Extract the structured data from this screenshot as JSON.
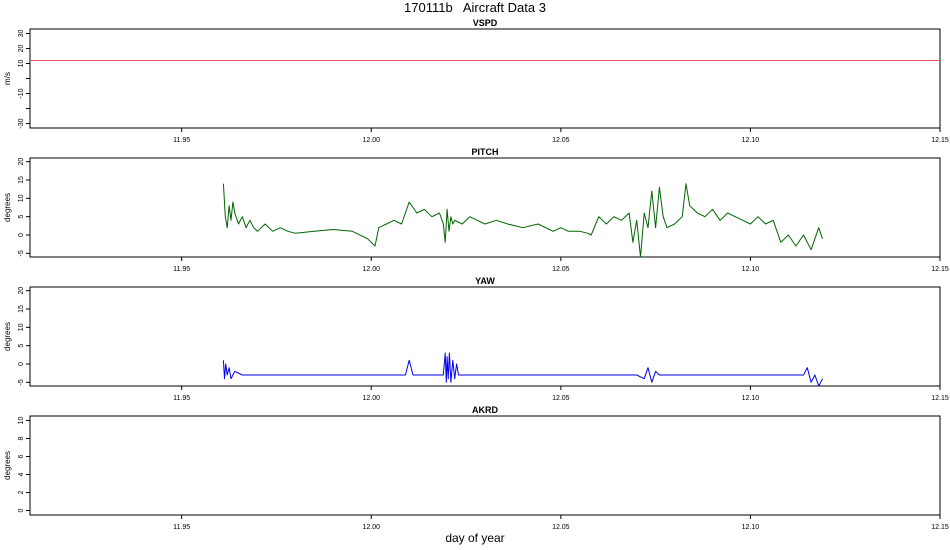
{
  "title": "170111b   Aircraft Data 3",
  "xlabel": "day of year",
  "colors": {
    "vspd": "#e8505b",
    "pitch": "#006400",
    "yaw": "#0000ee",
    "axis": "#000000"
  },
  "chart_data": [
    {
      "type": "line",
      "title": "VSPD",
      "ylabel": "m/s",
      "xlim": [
        11.91,
        12.15
      ],
      "ylim": [
        -33,
        33
      ],
      "x_ticks": [
        "11.95",
        "12.00",
        "12.05",
        "12.10",
        "12.15"
      ],
      "y_ticks": [
        -30,
        -20,
        -10,
        0,
        10,
        20,
        30
      ],
      "y_tick_labels": [
        "-30",
        "",
        "-10",
        "",
        "10",
        "20",
        "30"
      ],
      "reference_line": {
        "y": 12,
        "color": "#e8505b"
      },
      "series": []
    },
    {
      "type": "line",
      "title": "PITCH",
      "ylabel": "degrees",
      "xlim": [
        11.91,
        12.15
      ],
      "ylim": [
        -6,
        21
      ],
      "x_ticks": [
        "11.95",
        "12.00",
        "12.05",
        "12.10",
        "12.15"
      ],
      "y_ticks": [
        -5,
        0,
        5,
        10,
        15,
        20
      ],
      "y_tick_labels": [
        "-5",
        "0",
        "5",
        "10",
        "15",
        "20"
      ],
      "series": [
        {
          "color": "#006400",
          "x": [
            11.961,
            11.9615,
            11.962,
            11.9625,
            11.963,
            11.9635,
            11.964,
            11.965,
            11.966,
            11.967,
            11.968,
            11.969,
            11.97,
            11.972,
            11.974,
            11.976,
            11.978,
            11.98,
            11.985,
            11.99,
            11.995,
            11.999,
            12.0,
            12.001,
            12.002,
            12.004,
            12.006,
            12.008,
            12.01,
            12.012,
            12.014,
            12.016,
            12.018,
            12.019,
            12.0195,
            12.02,
            12.0205,
            12.021,
            12.0215,
            12.022,
            12.024,
            12.026,
            12.028,
            12.03,
            12.033,
            12.036,
            12.04,
            12.044,
            12.048,
            12.05,
            12.052,
            12.055,
            12.057,
            12.058,
            12.06,
            12.062,
            12.064,
            12.066,
            12.068,
            12.069,
            12.07,
            12.071,
            12.072,
            12.073,
            12.074,
            12.075,
            12.076,
            12.077,
            12.078,
            12.08,
            12.082,
            12.083,
            12.084,
            12.086,
            12.088,
            12.09,
            12.092,
            12.094,
            12.096,
            12.098,
            12.1,
            12.102,
            12.104,
            12.106,
            12.108,
            12.11,
            12.112,
            12.114,
            12.116,
            12.118,
            12.119
          ],
          "y": [
            14,
            5,
            2,
            8,
            4,
            9,
            6,
            3,
            5,
            2,
            4,
            2,
            1,
            3,
            1,
            2,
            1,
            0.5,
            1,
            1.5,
            1,
            -1,
            -2,
            -3,
            2,
            3,
            4,
            3,
            9,
            6,
            7,
            5,
            6,
            3,
            -2,
            7,
            1,
            5,
            3,
            4,
            3,
            5,
            4,
            3,
            4,
            3,
            2,
            3,
            1,
            2,
            1,
            1,
            0.5,
            0,
            5,
            3,
            5,
            4,
            6,
            -2,
            4,
            -6,
            6,
            2,
            12,
            2,
            13,
            5,
            2,
            3,
            5,
            14,
            8,
            6,
            5,
            7,
            4,
            6,
            5,
            4,
            3,
            5,
            3,
            4,
            -2,
            0,
            -3,
            0,
            -4,
            2,
            -1
          ]
        }
      ]
    },
    {
      "type": "line",
      "title": "YAW",
      "ylabel": "degrees",
      "xlim": [
        11.91,
        12.15
      ],
      "ylim": [
        -6,
        21
      ],
      "x_ticks": [
        "11.95",
        "12.00",
        "12.05",
        "12.10",
        "12.15"
      ],
      "y_ticks": [
        -5,
        0,
        5,
        10,
        15,
        20
      ],
      "y_tick_labels": [
        "-5",
        "0",
        "5",
        "10",
        "15",
        "20"
      ],
      "series": [
        {
          "color": "#0000ee",
          "x": [
            11.961,
            11.9613,
            11.9616,
            11.962,
            11.9625,
            11.963,
            11.964,
            11.966,
            11.97,
            11.975,
            11.98,
            11.985,
            11.99,
            11.995,
            12.0,
            12.005,
            12.009,
            12.01,
            12.011,
            12.015,
            12.018,
            12.019,
            12.0195,
            12.0198,
            12.02,
            12.0203,
            12.0206,
            12.021,
            12.0215,
            12.022,
            12.0225,
            12.023,
            12.024,
            12.026,
            12.03,
            12.035,
            12.04,
            12.045,
            12.05,
            12.055,
            12.06,
            12.065,
            12.07,
            12.072,
            12.073,
            12.074,
            12.075,
            12.076,
            12.078,
            12.08,
            12.085,
            12.09,
            12.095,
            12.1,
            12.105,
            12.11,
            12.114,
            12.115,
            12.116,
            12.117,
            12.118,
            12.119
          ],
          "y": [
            1,
            -4,
            0,
            -3,
            -1,
            -4,
            -2,
            -3,
            -3,
            -3,
            -3,
            -3,
            -3,
            -3,
            -3,
            -3,
            -3,
            1,
            -3,
            -3,
            -3,
            -3,
            3,
            -5,
            2,
            -4,
            3,
            -5,
            1,
            -4,
            0,
            -3,
            -3,
            -3,
            -3,
            -3,
            -3,
            -3,
            -3,
            -3,
            -3,
            -3,
            -3,
            -4,
            -1,
            -5,
            -2,
            -3,
            -3,
            -3,
            -3,
            -3,
            -3,
            -3,
            -3,
            -3,
            -3,
            -1,
            -5,
            -3,
            -6,
            -4
          ]
        }
      ]
    },
    {
      "type": "line",
      "title": "AKRD",
      "ylabel": "degrees",
      "xlim": [
        11.91,
        12.15
      ],
      "ylim": [
        -0.5,
        10.5
      ],
      "x_ticks": [
        "11.95",
        "12.00",
        "12.05",
        "12.10",
        "12.15"
      ],
      "y_ticks": [
        0,
        2,
        4,
        6,
        8,
        10
      ],
      "y_tick_labels": [
        "0",
        "2",
        "4",
        "6",
        "8",
        "10"
      ],
      "series": []
    }
  ]
}
